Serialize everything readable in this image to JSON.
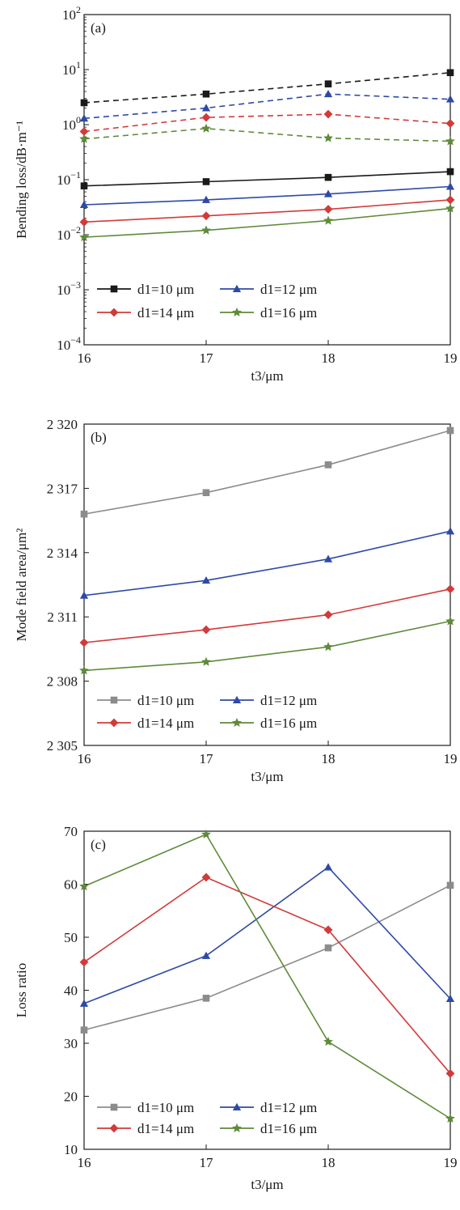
{
  "chart_data": [
    {
      "type": "line",
      "panel_label": "(a)",
      "xlabel": "t3/μm",
      "ylabel": "Bending loss/dB·m⁻¹",
      "yscale": "log",
      "x": [
        16,
        17,
        18,
        19
      ],
      "xlim": [
        16,
        19
      ],
      "ylim": [
        0.0001,
        100
      ],
      "x_ticks": [
        "16",
        "17",
        "18",
        "19"
      ],
      "y_ticks": [
        {
          "value": 0.0001,
          "base": "10",
          "exp": "−4"
        },
        {
          "value": 0.001,
          "base": "10",
          "exp": "−3"
        },
        {
          "value": 0.01,
          "base": "10",
          "exp": "−2"
        },
        {
          "value": 0.1,
          "base": "10",
          "exp": "−1"
        },
        {
          "value": 1,
          "base": "10",
          "exp": "0"
        },
        {
          "value": 10,
          "base": "10",
          "exp": "1"
        },
        {
          "value": 100,
          "base": "10",
          "exp": "2"
        }
      ],
      "legend_placement": "bottom-left",
      "series": [
        {
          "name": "d1=10 μm",
          "color": "#1a1a1a",
          "marker": "square",
          "dashed": true,
          "values": [
            2.5,
            3.6,
            5.5,
            8.8
          ]
        },
        {
          "name": "d1=12 μm",
          "color": "#2e4aa6",
          "marker": "triangle",
          "dashed": true,
          "values": [
            1.3,
            2.0,
            3.6,
            2.9
          ]
        },
        {
          "name": "d1=14 μm",
          "color": "#d33a3a",
          "marker": "diamond",
          "dashed": true,
          "values": [
            0.75,
            1.35,
            1.55,
            1.05
          ]
        },
        {
          "name": "d1=16 μm",
          "color": "#5f8a3a",
          "marker": "star",
          "dashed": true,
          "values": [
            0.55,
            0.85,
            0.57,
            0.5
          ]
        },
        {
          "name": "d1=10 μm",
          "color": "#1a1a1a",
          "marker": "square",
          "dashed": false,
          "values": [
            0.077,
            0.092,
            0.11,
            0.14
          ]
        },
        {
          "name": "d1=12 μm",
          "color": "#2e4aa6",
          "marker": "triangle",
          "dashed": false,
          "values": [
            0.035,
            0.043,
            0.055,
            0.075
          ]
        },
        {
          "name": "d1=14 μm",
          "color": "#d33a3a",
          "marker": "diamond",
          "dashed": false,
          "values": [
            0.017,
            0.022,
            0.029,
            0.043
          ]
        },
        {
          "name": "d1=16 μm",
          "color": "#5f8a3a",
          "marker": "star",
          "dashed": false,
          "values": [
            0.009,
            0.012,
            0.018,
            0.03
          ]
        }
      ]
    },
    {
      "type": "line",
      "panel_label": "(b)",
      "xlabel": "t3/μm",
      "ylabel": "Mode field area/μm²",
      "x": [
        16,
        17,
        18,
        19
      ],
      "xlim": [
        16,
        19
      ],
      "ylim": [
        2305,
        2320
      ],
      "x_ticks": [
        "16",
        "17",
        "18",
        "19"
      ],
      "y_ticks": [
        {
          "value": 2305,
          "label": "2 305"
        },
        {
          "value": 2308,
          "label": "2 308"
        },
        {
          "value": 2311,
          "label": "2 311"
        },
        {
          "value": 2314,
          "label": "2 314"
        },
        {
          "value": 2317,
          "label": "2 317"
        },
        {
          "value": 2320,
          "label": "2 320"
        }
      ],
      "legend_placement": "bottom-left",
      "series": [
        {
          "name": "d1=10 μm",
          "color": "#8c8c8c",
          "marker": "square",
          "values": [
            2315.8,
            2316.8,
            2318.1,
            2319.7
          ]
        },
        {
          "name": "d1=12 μm",
          "color": "#2e4aa6",
          "marker": "triangle",
          "values": [
            2312.0,
            2312.7,
            2313.7,
            2315.0
          ]
        },
        {
          "name": "d1=14 μm",
          "color": "#d33a3a",
          "marker": "diamond",
          "values": [
            2309.8,
            2310.4,
            2311.1,
            2312.3
          ]
        },
        {
          "name": "d1=16 μm",
          "color": "#5f8a3a",
          "marker": "star",
          "values": [
            2308.5,
            2308.9,
            2309.6,
            2310.8
          ]
        }
      ]
    },
    {
      "type": "line",
      "panel_label": "(c)",
      "xlabel": "t3/μm",
      "ylabel": "Loss ratio",
      "x": [
        16,
        17,
        18,
        19
      ],
      "xlim": [
        16,
        19
      ],
      "ylim": [
        10,
        70
      ],
      "x_ticks": [
        "16",
        "17",
        "18",
        "19"
      ],
      "y_ticks": [
        {
          "value": 10,
          "label": "10"
        },
        {
          "value": 20,
          "label": "20"
        },
        {
          "value": 30,
          "label": "30"
        },
        {
          "value": 40,
          "label": "40"
        },
        {
          "value": 50,
          "label": "50"
        },
        {
          "value": 60,
          "label": "60"
        },
        {
          "value": 70,
          "label": "70"
        }
      ],
      "legend_placement": "bottom-left",
      "series": [
        {
          "name": "d1=10 μm",
          "color": "#8c8c8c",
          "marker": "square",
          "values": [
            32.5,
            38.5,
            48.0,
            59.8
          ]
        },
        {
          "name": "d1=12 μm",
          "color": "#2e4aa6",
          "marker": "triangle",
          "values": [
            37.5,
            46.5,
            63.2,
            38.4
          ]
        },
        {
          "name": "d1=14 μm",
          "color": "#d33a3a",
          "marker": "diamond",
          "values": [
            45.3,
            61.3,
            51.4,
            24.3
          ]
        },
        {
          "name": "d1=16 μm",
          "color": "#5f8a3a",
          "marker": "star",
          "values": [
            59.6,
            69.4,
            30.3,
            15.8
          ]
        }
      ]
    }
  ]
}
